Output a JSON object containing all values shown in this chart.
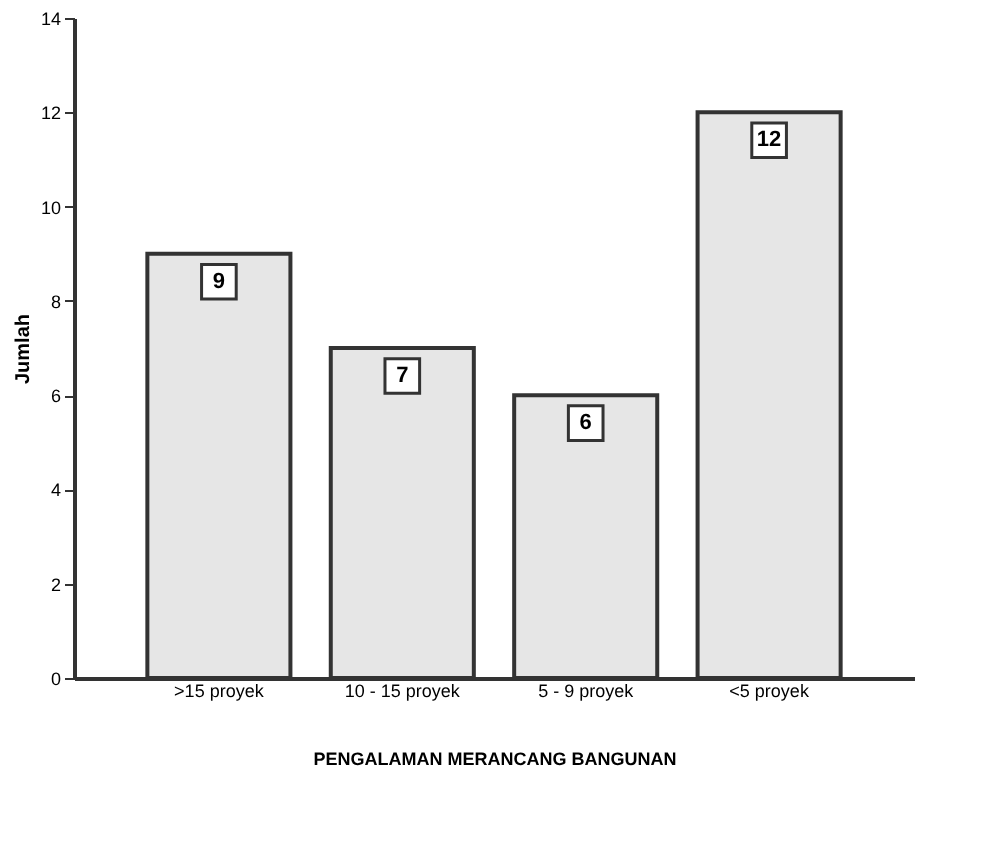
{
  "chart_data": {
    "type": "bar",
    "xlabel": "PENGALAMAN MERANCANG BANGUNAN",
    "ylabel": "Jumlah",
    "categories": [
      ">15 proyek",
      "10 - 15 proyek",
      "5 - 9 proyek",
      "<5 proyek"
    ],
    "values": [
      9,
      7,
      6,
      12
    ],
    "color": "#e6e6e6",
    "ylim": [
      0,
      14
    ],
    "yticks": [
      0,
      2,
      4,
      6,
      8,
      10,
      12,
      14
    ],
    "grid": false,
    "data_labels": true
  }
}
